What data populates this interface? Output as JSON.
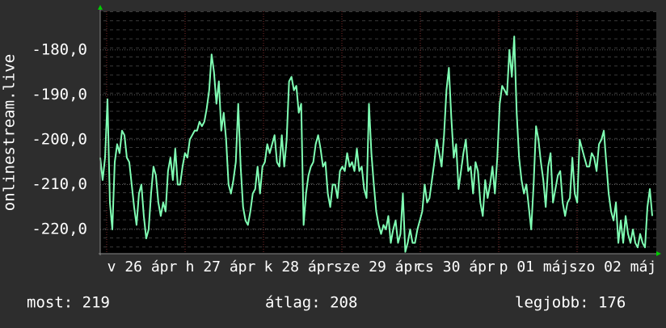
{
  "chart_data": {
    "type": "line",
    "y_label": "onlinestream.live",
    "x_labels": [
      "v 26 ápr",
      "h 27 ápr",
      "k 28 ápr",
      "sze 29 ápr",
      "cs 30 ápr",
      "p 01 máj",
      "szo 02 máj"
    ],
    "color": "#80ffb4",
    "ylim": [
      -225.4,
      -171.4
    ],
    "yticks": [
      {
        "value": -180,
        "label": "-180,0"
      },
      {
        "value": -190,
        "label": "-190,0"
      },
      {
        "value": -200,
        "label": "-200,0"
      },
      {
        "value": -210,
        "label": "-210,0"
      },
      {
        "value": -220,
        "label": "-220,0"
      }
    ],
    "grid": true,
    "values": [
      -204,
      -209,
      -204,
      -191,
      -214,
      -220,
      -205,
      -201,
      -203,
      -198,
      -199,
      -204,
      -205,
      -210,
      -215,
      -219,
      -212,
      -210,
      -217,
      -222,
      -220,
      -212,
      -206,
      -208,
      -214,
      -217,
      -214,
      -216,
      -207,
      -204,
      -209,
      -202,
      -210,
      -210,
      -206,
      -203,
      -204,
      -200,
      -199,
      -198,
      -198,
      -196,
      -197,
      -196,
      -193,
      -189,
      -181,
      -185,
      -192,
      -187,
      -198,
      -194,
      -200,
      -210,
      -212,
      -209,
      -205,
      -192,
      -206,
      -215,
      -218,
      -219,
      -216,
      -212,
      -211,
      -206,
      -212,
      -206,
      -205,
      -201,
      -203,
      -201,
      -199,
      -205,
      -206,
      -199,
      -206,
      -200,
      -187,
      -186,
      -189,
      -188,
      -194,
      -192,
      -219,
      -212,
      -208,
      -206,
      -205,
      -201,
      -199,
      -202,
      -206,
      -205,
      -212,
      -215,
      -210,
      -210,
      -213,
      -207,
      -206,
      -207,
      -203,
      -206,
      -205,
      -207,
      -202,
      -207,
      -206,
      -211,
      -213,
      -192,
      -203,
      -210,
      -216,
      -219,
      -221,
      -219,
      -220,
      -217,
      -223,
      -220,
      -218,
      -223,
      -221,
      -212,
      -225,
      -223,
      -220,
      -223,
      -223,
      -220,
      -218,
      -216,
      -210,
      -214,
      -213,
      -209,
      -205,
      -200,
      -203,
      -206,
      -199,
      -189,
      -184,
      -195,
      -204,
      -201,
      -211,
      -207,
      -203,
      -200,
      -207,
      -206,
      -212,
      -205,
      -207,
      -214,
      -217,
      -209,
      -213,
      -210,
      -206,
      -212,
      -204,
      -192,
      -188,
      -189,
      -190,
      -180,
      -186,
      -177,
      -194,
      -204,
      -209,
      -212,
      -210,
      -215,
      -220,
      -210,
      -197,
      -200,
      -205,
      -209,
      -215,
      -206,
      -203,
      -214,
      -211,
      -208,
      -207,
      -214,
      -217,
      -214,
      -213,
      -204,
      -212,
      -214,
      -200,
      -202,
      -204,
      -206,
      -206,
      -203,
      -204,
      -207,
      -201,
      -200,
      -198,
      -205,
      -212,
      -216,
      -218,
      -214,
      -223,
      -218,
      -223,
      -217,
      -221,
      -223,
      -220,
      -223,
      -224,
      -221,
      -223,
      -224,
      -215,
      -211,
      -217
    ],
    "stats": [
      "most: 219",
      "átlag: 208",
      "legjobb: 176"
    ]
  }
}
